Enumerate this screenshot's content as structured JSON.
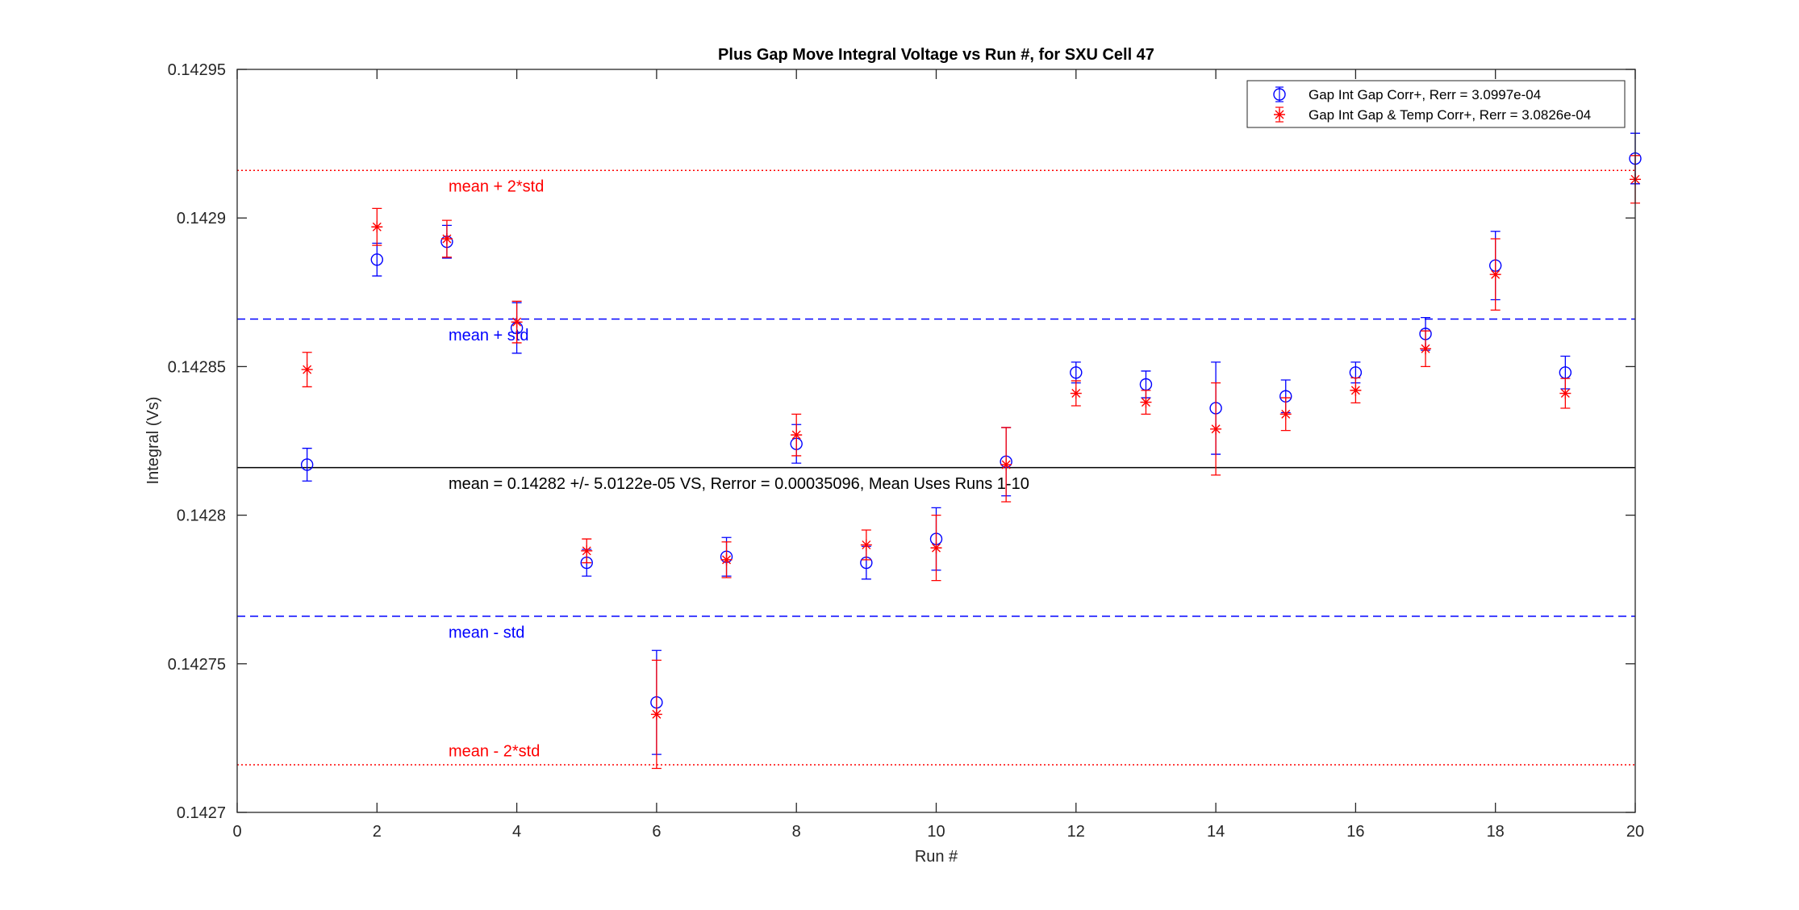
{
  "chart_data": {
    "type": "scatter",
    "title": "Plus Gap Move Integral Voltage vs Run #, for SXU Cell 47",
    "xlabel": "Run #",
    "ylabel": "Integral (Vs)",
    "xlim": [
      0,
      20
    ],
    "ylim": [
      0.1427,
      0.14295
    ],
    "xticks": [
      0,
      2,
      4,
      6,
      8,
      10,
      12,
      14,
      16,
      18,
      20
    ],
    "xtick_labels": [
      "0",
      "2",
      "4",
      "6",
      "8",
      "10",
      "12",
      "14",
      "16",
      "18",
      "20"
    ],
    "yticks": [
      0.1427,
      0.14275,
      0.1428,
      0.14285,
      0.1429,
      0.14295
    ],
    "ytick_labels": [
      "0.1427",
      "0.14275",
      "0.1428",
      "0.14285",
      "0.1429",
      "0.14295"
    ],
    "grid": false,
    "legend_position": "top-right",
    "series": [
      {
        "name": "Gap Int Gap Corr+, Rerr = 3.0997e-04",
        "marker": "circle",
        "color": "#0000ff",
        "x": [
          1,
          2,
          3,
          4,
          5,
          6,
          7,
          8,
          9,
          10,
          11,
          12,
          13,
          14,
          15,
          16,
          17,
          18,
          19,
          20
        ],
        "y": [
          0.142817,
          0.142886,
          0.142892,
          0.142863,
          0.142784,
          0.142737,
          0.142786,
          0.142824,
          0.142784,
          0.142792,
          0.142818,
          0.142848,
          0.142844,
          0.142836,
          0.14284,
          0.142848,
          0.142861,
          0.142884,
          0.142848,
          0.14292
        ],
        "err": [
          5.5e-06,
          5.5e-06,
          5.5e-06,
          8.5e-06,
          4.5e-06,
          1.75e-05,
          6.5e-06,
          6.5e-06,
          5.5e-06,
          1.05e-05,
          1.15e-05,
          3.5e-06,
          4.5e-06,
          1.55e-05,
          5.5e-06,
          3.5e-06,
          5.5e-06,
          1.15e-05,
          5.5e-06,
          8.5e-06
        ]
      },
      {
        "name": "Gap Int Gap & Temp  Corr+, Rerr = 3.0826e-04",
        "marker": "asterisk",
        "color": "#ff0000",
        "x": [
          1,
          2,
          3,
          4,
          5,
          6,
          7,
          8,
          9,
          10,
          11,
          12,
          13,
          14,
          15,
          16,
          17,
          18,
          19,
          20
        ],
        "y": [
          0.142849,
          0.142897,
          0.142893,
          0.142865,
          0.142788,
          0.142733,
          0.142785,
          0.142827,
          0.14279,
          0.142789,
          0.142817,
          0.142841,
          0.142838,
          0.142829,
          0.142834,
          0.142842,
          0.142856,
          0.142881,
          0.142841,
          0.142913
        ],
        "err": [
          5.8e-06,
          6.2e-06,
          6.2e-06,
          7e-06,
          4e-06,
          1.82e-05,
          6e-06,
          7e-06,
          5e-06,
          1.1e-05,
          1.25e-05,
          4.2e-06,
          4e-06,
          1.55e-05,
          5.5e-06,
          4.2e-06,
          6e-06,
          1.2e-05,
          5e-06,
          8e-06
        ]
      }
    ],
    "reference_lines": [
      {
        "y": 0.142816,
        "color": "#000000",
        "style": "solid"
      },
      {
        "y": 0.142866,
        "color": "#0000ff",
        "style": "dashed"
      },
      {
        "y": 0.142766,
        "color": "#0000ff",
        "style": "dashed"
      },
      {
        "y": 0.142916,
        "color": "#ff0000",
        "style": "dotted"
      },
      {
        "y": 0.142716,
        "color": "#ff0000",
        "style": "dotted"
      }
    ],
    "annotations": [
      {
        "text": "mean + 2*std",
        "x": 3,
        "y": 0.142911,
        "color": "#ff0000"
      },
      {
        "text": "mean + std",
        "x": 3,
        "y": 0.142861,
        "color": "#0000ff"
      },
      {
        "text": "mean = 0.14282 +/- 5.0122e-05 VS, Rerror = 0.00035096, Mean Uses Runs 1-10",
        "x": 3,
        "y": 0.142811,
        "color": "#000000"
      },
      {
        "text": "mean - std",
        "x": 3,
        "y": 0.142761,
        "color": "#0000ff"
      },
      {
        "text": "mean - 2*std",
        "x": 3,
        "y": 0.142721,
        "color": "#ff0000"
      }
    ]
  }
}
